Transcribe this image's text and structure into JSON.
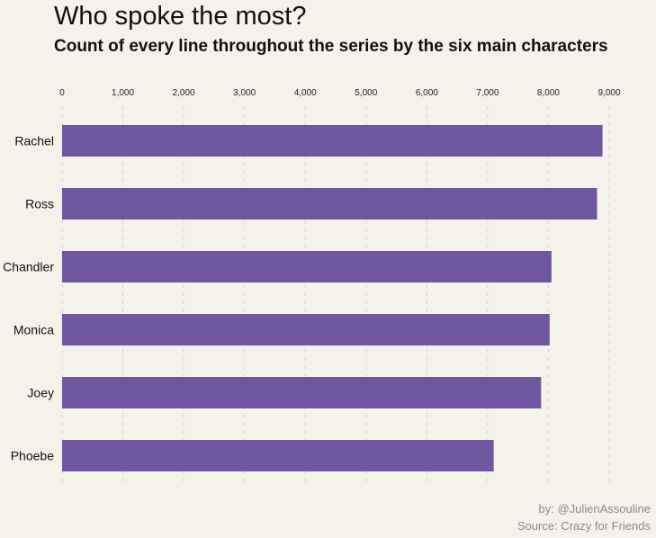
{
  "chart_data": {
    "type": "bar",
    "orientation": "horizontal",
    "title": "Who spoke the most?",
    "subtitle": "Count of every line throughout the series by the six main characters",
    "categories": [
      "Rachel",
      "Ross",
      "Chandler",
      "Monica",
      "Joey",
      "Phoebe"
    ],
    "values": [
      8890,
      8800,
      8050,
      8020,
      7880,
      7100
    ],
    "xlim": [
      0,
      9000
    ],
    "xticks": [
      "0",
      "1,000",
      "2,000",
      "3,000",
      "4,000",
      "5,000",
      "6,000",
      "7,000",
      "8,000",
      "9,000"
    ],
    "xtick_values": [
      0,
      1000,
      2000,
      3000,
      4000,
      5000,
      6000,
      7000,
      8000,
      9000
    ],
    "x_axis_position": "top",
    "grid": "vertical dashed",
    "bar_color": "#6f57a0",
    "background_color": "#f5f2eb",
    "grid_color": "#d9d5cc"
  },
  "caption": {
    "by": "by: @JulienAssouline",
    "source": "Source: Crazy for Friends"
  }
}
